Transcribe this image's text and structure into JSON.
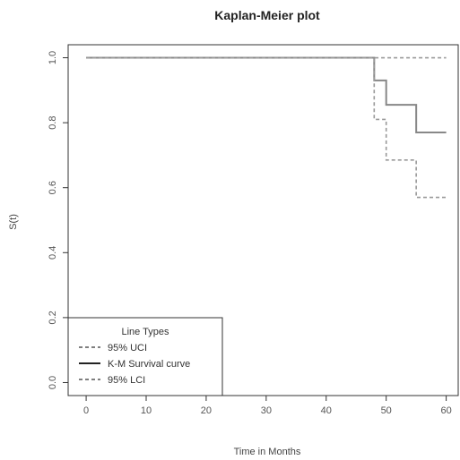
{
  "chart_data": {
    "type": "line",
    "title": "Kaplan-Meier plot",
    "xlabel": "Time in Months",
    "ylabel": "S(t)",
    "xlim": [
      -3,
      62
    ],
    "ylim": [
      -0.04,
      1.04
    ],
    "x_ticks": [
      0,
      10,
      20,
      30,
      40,
      50,
      60
    ],
    "y_ticks": [
      0.0,
      0.2,
      0.4,
      0.6,
      0.8,
      1.0
    ],
    "x_tick_labels": [
      "0",
      "10",
      "20",
      "30",
      "40",
      "50",
      "60"
    ],
    "y_tick_labels": [
      "0.0",
      "0.2",
      "0.4",
      "0.6",
      "0.8",
      "1.0"
    ],
    "grid": false,
    "legend": {
      "title": "Line Types",
      "position": "bottom-left",
      "entries": [
        "95% UCI",
        "K-M Survival curve",
        "95% LCI"
      ]
    },
    "series": [
      {
        "name": "95% UCI",
        "style": "dashed",
        "color": "#999999",
        "x": [
          0,
          48,
          60
        ],
        "y": [
          1.0,
          1.0,
          1.0
        ]
      },
      {
        "name": "K-M Survival curve",
        "style": "solid",
        "color": "#888888",
        "x": [
          0,
          48,
          50,
          55,
          60
        ],
        "y": [
          1.0,
          0.93,
          0.855,
          0.77,
          0.77
        ]
      },
      {
        "name": "95% LCI",
        "style": "dashed",
        "color": "#999999",
        "x": [
          0,
          48,
          50,
          55,
          60
        ],
        "y": [
          1.0,
          0.81,
          0.685,
          0.57,
          0.57
        ]
      }
    ]
  }
}
